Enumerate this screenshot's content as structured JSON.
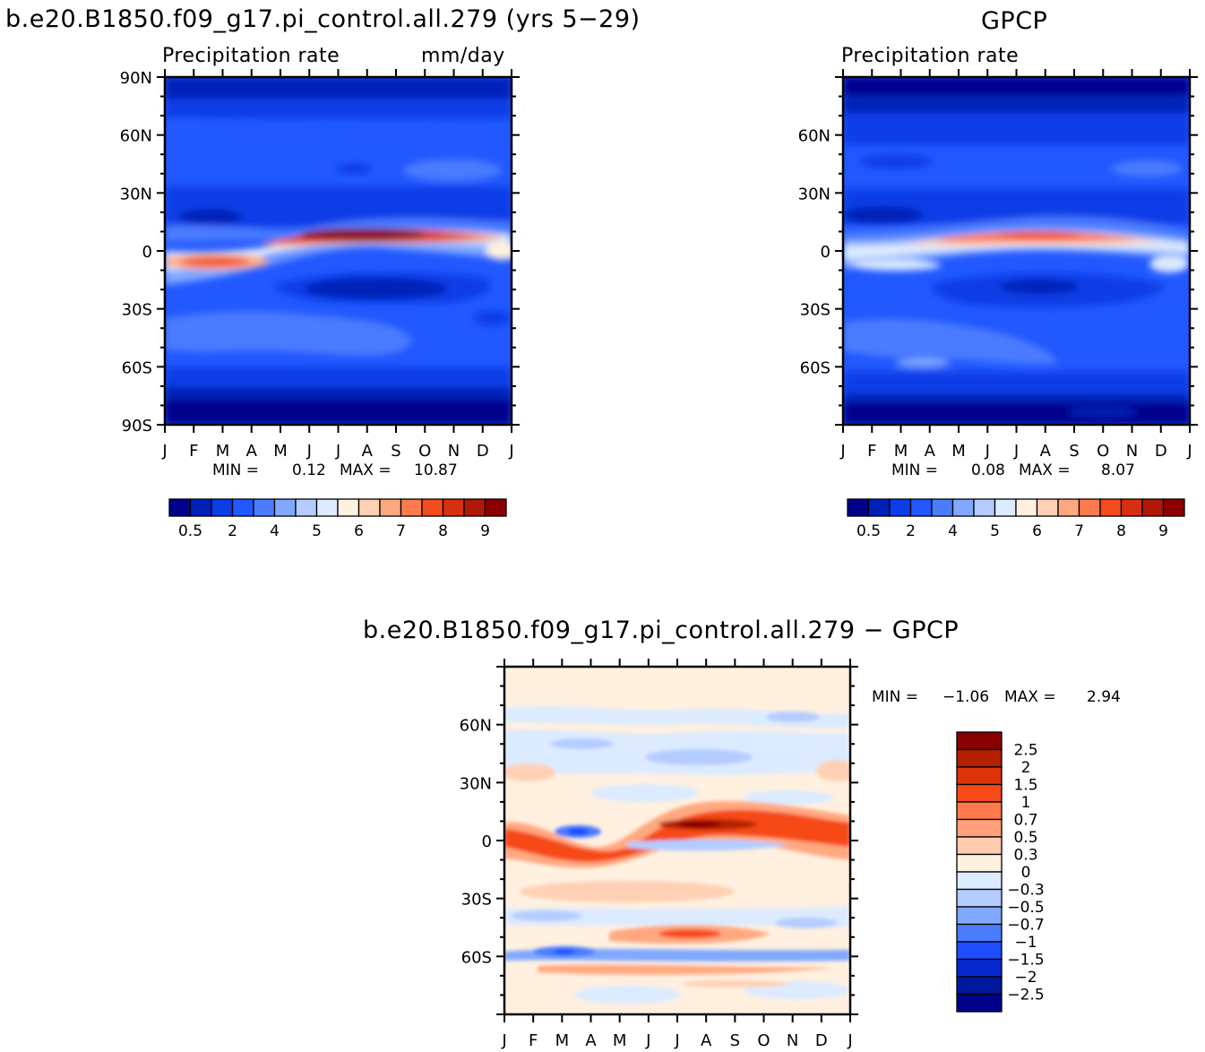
{
  "panels": [
    {
      "id": "model",
      "title": "b.e20.B1850.f09_g17.pi_control.all.279 (yrs 5−29)",
      "left_label": "Precipitation rate",
      "right_label": "mm/day",
      "y_ticks": [
        "90N",
        "60N",
        "30N",
        "0",
        "30S",
        "60S",
        "90S"
      ],
      "min_label": "MIN =",
      "min_value": "0.12",
      "max_label": "MAX =",
      "max_value": "10.87"
    },
    {
      "id": "obs",
      "title": "GPCP",
      "left_label": "Precipitation rate",
      "right_label": "",
      "y_ticks": [
        "60N",
        "30N",
        "0",
        "30S",
        "60S"
      ],
      "min_label": "MIN =",
      "min_value": "0.08",
      "max_label": "MAX =",
      "max_value": "8.07"
    },
    {
      "id": "diff",
      "title": "b.e20.B1850.f09_g17.pi_control.all.279 − GPCP",
      "y_ticks": [
        "60N",
        "30N",
        "0",
        "30S",
        "60S"
      ],
      "min_label": "MIN =",
      "min_value": "−1.06",
      "max_label": "MAX =",
      "max_value": "2.94"
    }
  ],
  "months": [
    "J",
    "F",
    "M",
    "A",
    "M",
    "J",
    "J",
    "A",
    "S",
    "O",
    "N",
    "D",
    "J"
  ],
  "abs_colorbar": {
    "labels": [
      "0.5",
      "2",
      "4",
      "5",
      "6",
      "7",
      "8",
      "9"
    ],
    "colors": [
      "#00008b",
      "#0021b8",
      "#0a3ee6",
      "#2258ff",
      "#4a7cff",
      "#80a8ff",
      "#b4ccff",
      "#dcebff",
      "#fff0e0",
      "#ffd0b4",
      "#ffa880",
      "#ff7a4c",
      "#f34a20",
      "#d63010",
      "#b01808",
      "#8b0000"
    ]
  },
  "diff_colorbar": {
    "labels": [
      "2.5",
      "2",
      "1.5",
      "1",
      "0.7",
      "0.5",
      "0.3",
      "0",
      "−0.3",
      "−0.5",
      "−0.7",
      "−1",
      "−1.5",
      "−2",
      "−2.5"
    ],
    "colors": [
      "#8b0000",
      "#b22000",
      "#dc3408",
      "#f64a18",
      "#ff7a4c",
      "#ffa07a",
      "#ffccb0",
      "#fff0e0",
      "#dcebff",
      "#b4ccff",
      "#80a8ff",
      "#4a7cff",
      "#1f4eff",
      "#0829d0",
      "#00189c",
      "#00008b"
    ]
  },
  "chart_data": [
    {
      "type": "heatmap",
      "title": "b.e20.B1850.f09_g17.pi_control.all.279 (yrs 5−29)",
      "field": "Precipitation rate",
      "units": "mm/day",
      "x": [
        "J",
        "F",
        "M",
        "A",
        "M",
        "J",
        "J",
        "A",
        "S",
        "O",
        "N",
        "D",
        "J"
      ],
      "y_range": [
        "90S",
        "90N"
      ],
      "min": 0.12,
      "max": 10.87,
      "contour_levels": [
        0.5,
        1,
        2,
        3,
        4,
        4.5,
        5,
        5.5,
        6,
        6.5,
        7,
        7.5,
        8,
        8.5,
        9
      ],
      "itcz_latitude_deg": [
        -5,
        -5,
        -5,
        -4,
        0,
        6,
        8,
        9,
        9,
        9,
        8,
        6,
        5
      ],
      "itcz_peak_mm_day": [
        6.5,
        7.0,
        7.2,
        6.5,
        7.5,
        9.0,
        10.5,
        10.8,
        10.5,
        9.5,
        8.5,
        7.5,
        6.5
      ]
    },
    {
      "type": "heatmap",
      "title": "GPCP",
      "field": "Precipitation rate",
      "x": [
        "J",
        "F",
        "M",
        "A",
        "M",
        "J",
        "J",
        "A",
        "S",
        "O",
        "N",
        "D",
        "J"
      ],
      "y_range": [
        "90S",
        "90N"
      ],
      "min": 0.08,
      "max": 8.07,
      "contour_levels": [
        0.5,
        1,
        2,
        3,
        4,
        4.5,
        5,
        5.5,
        6,
        6.5,
        7,
        7.5,
        8,
        8.5,
        9
      ],
      "itcz_latitude_deg": [
        2,
        2,
        3,
        3,
        5,
        6,
        8,
        9,
        9,
        9,
        8,
        6,
        5
      ],
      "itcz_peak_mm_day": [
        6.0,
        5.8,
        6.0,
        6.2,
        6.8,
        7.2,
        7.8,
        8.0,
        8.0,
        7.5,
        7.0,
        6.4,
        6.0
      ]
    },
    {
      "type": "heatmap",
      "title": "b.e20.B1850.f09_g17.pi_control.all.279 − GPCP",
      "x": [
        "J",
        "F",
        "M",
        "A",
        "M",
        "J",
        "J",
        "A",
        "S",
        "O",
        "N",
        "D",
        "J"
      ],
      "y_range": [
        "90S",
        "90N"
      ],
      "min": -1.06,
      "max": 2.94,
      "contour_levels": [
        -2.5,
        -2,
        -1.5,
        -1,
        -0.7,
        -0.5,
        -0.3,
        0,
        0.3,
        0.5,
        0.7,
        1,
        1.5,
        2,
        2.5
      ]
    }
  ]
}
